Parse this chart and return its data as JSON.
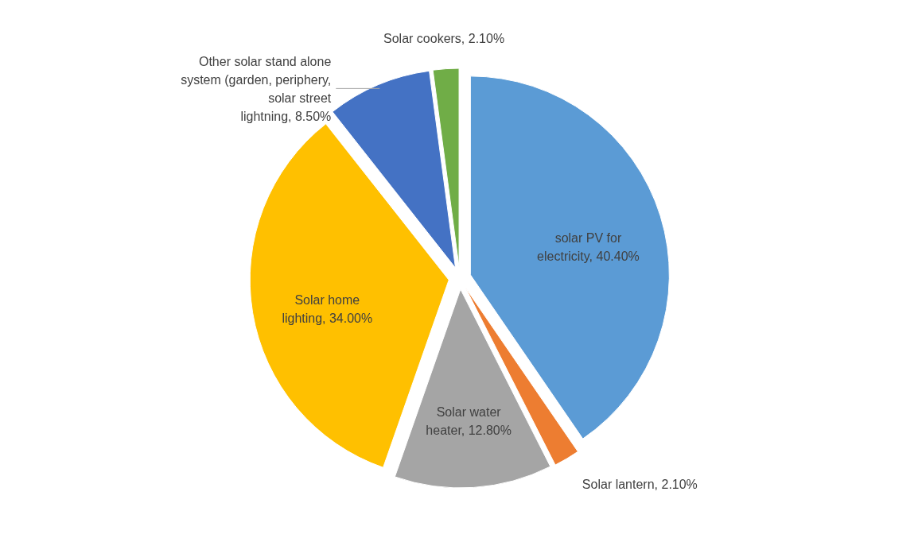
{
  "chart_data": {
    "type": "pie",
    "categories": [
      "solar PV for electricity",
      "Solar lantern",
      "Solar water heater",
      "Solar home lighting",
      "Other solar stand alone system (garden, periphery, solar street lightning",
      "Solar cookers"
    ],
    "values": [
      40.4,
      2.1,
      12.8,
      34.0,
      8.5,
      2.1
    ],
    "value_labels": [
      "40.40%",
      "2.10%",
      "12.80%",
      "34.00%",
      "8.50%",
      "2.10%"
    ],
    "colors": [
      "#5b9bd5",
      "#ed7d31",
      "#a5a5a5",
      "#ffc000",
      "#4472c4",
      "#70ad47"
    ]
  }
}
